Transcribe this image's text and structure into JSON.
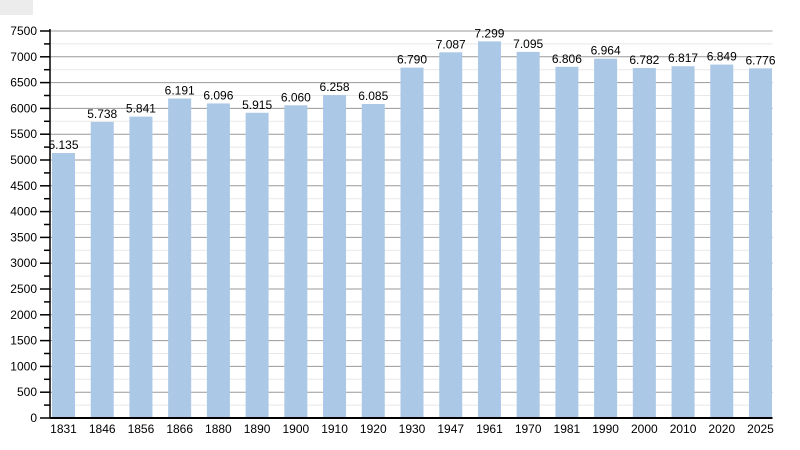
{
  "chart_data": {
    "type": "bar",
    "title": "",
    "xlabel": "",
    "ylabel": "",
    "categories": [
      "1831",
      "1846",
      "1856",
      "1866",
      "1880",
      "1890",
      "1900",
      "1910",
      "1920",
      "1930",
      "1947",
      "1961",
      "1970",
      "1981",
      "1990",
      "2000",
      "2010",
      "2020",
      "2025"
    ],
    "values": [
      5135,
      5738,
      5841,
      6191,
      6096,
      5915,
      6060,
      6258,
      6085,
      6790,
      7087,
      7299,
      7095,
      6806,
      6964,
      6782,
      6817,
      6849,
      6776
    ],
    "value_labels": [
      "5.135",
      "5.738",
      "5.841",
      "6.191",
      "6.096",
      "5.915",
      "6.060",
      "6.258",
      "6.085",
      "6.790",
      "7.087",
      "7.299",
      "7.095",
      "6.806",
      "6.964",
      "6.782",
      "6.817",
      "6.849",
      "6.776"
    ],
    "ylim": [
      0,
      7500
    ],
    "ytick_step": 500,
    "minor_tick_step": 250,
    "y_tick_labels": [
      "0",
      "500",
      "1000",
      "1500",
      "2000",
      "2500",
      "3000",
      "3500",
      "4000",
      "4500",
      "5000",
      "5500",
      "6000",
      "6500",
      "7000",
      "7500"
    ],
    "grid": "on",
    "legend": "none"
  },
  "colors": {
    "bar": "#abc8e6",
    "grid_major": "#999999",
    "grid_minor": "#e8e8e8",
    "axis": "#000000",
    "text": "#000000",
    "corner_artifact": "#ececec"
  }
}
